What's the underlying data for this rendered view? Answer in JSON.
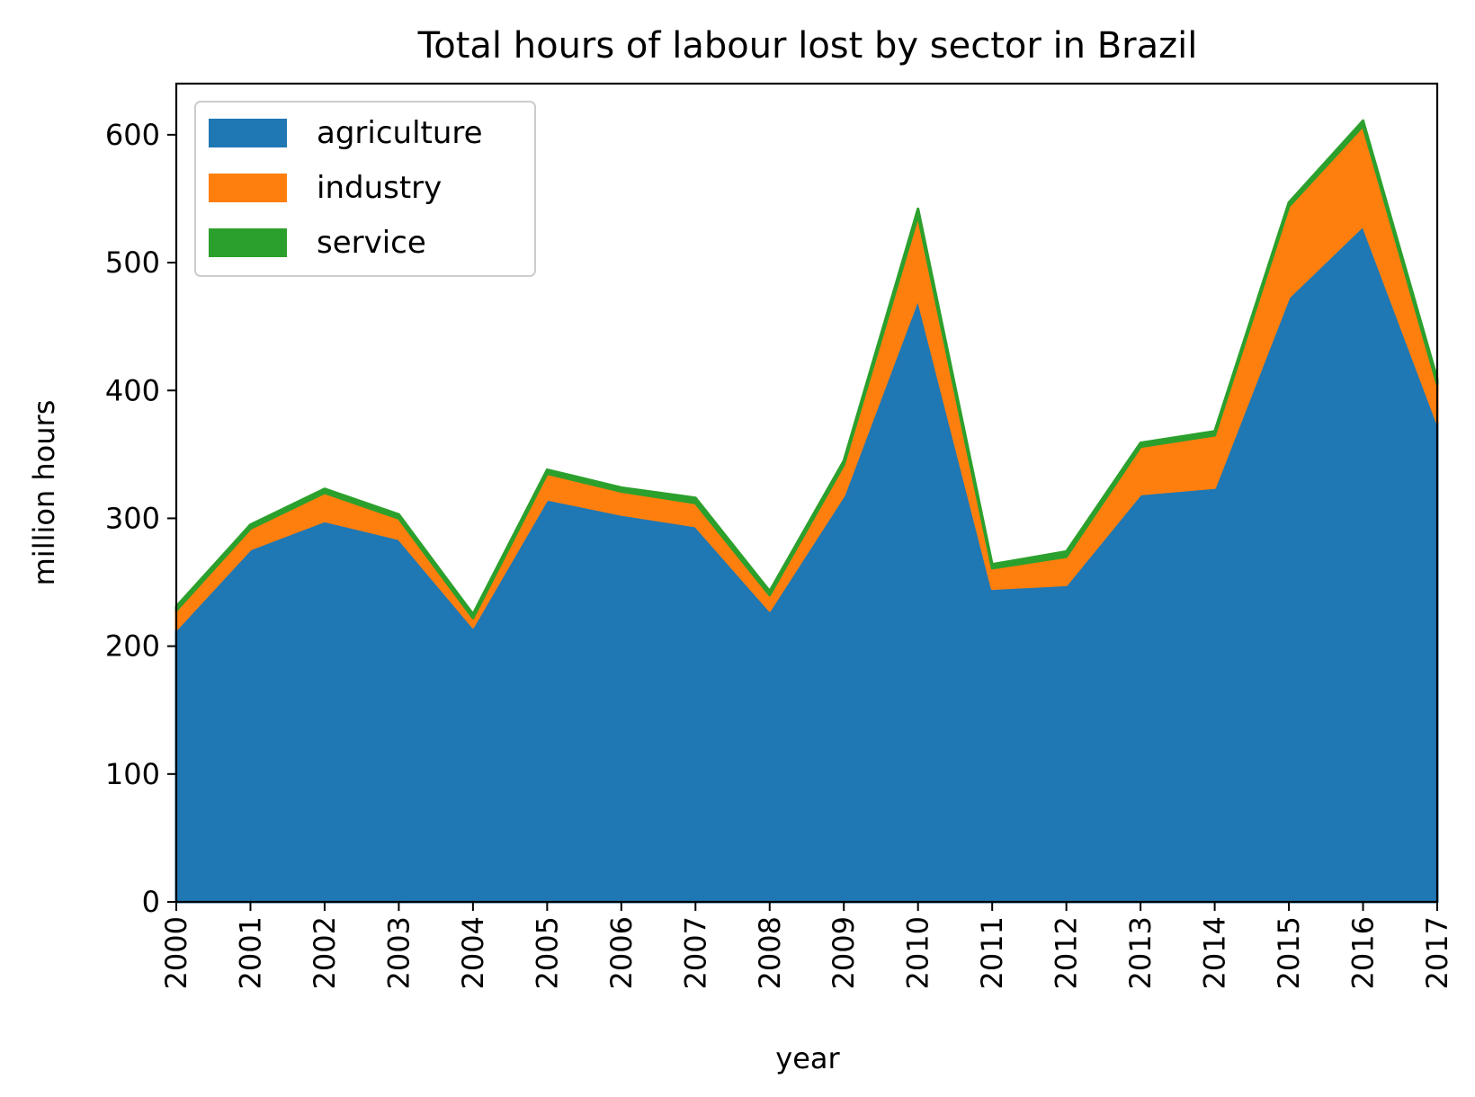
{
  "chart_data": {
    "type": "area",
    "stacked": true,
    "title": "Total hours of labour lost by sector in Brazil",
    "xlabel": "year",
    "ylabel": "million hours",
    "x": [
      2000,
      2001,
      2002,
      2003,
      2004,
      2005,
      2006,
      2007,
      2008,
      2009,
      2010,
      2011,
      2012,
      2013,
      2014,
      2015,
      2016,
      2017
    ],
    "x_tick_labels": [
      "2000",
      "2001",
      "2002",
      "2003",
      "2004",
      "2005",
      "2006",
      "2007",
      "2008",
      "2009",
      "2010",
      "2011",
      "2012",
      "2013",
      "2014",
      "2015",
      "2016",
      "2017"
    ],
    "xlim": [
      2000,
      2017
    ],
    "ylim": [
      0,
      640
    ],
    "y_ticks": [
      0,
      100,
      200,
      300,
      400,
      500,
      600
    ],
    "y_tick_labels": [
      "0",
      "100",
      "200",
      "300",
      "400",
      "500",
      "600"
    ],
    "grid": false,
    "legend_position": "top-left",
    "series": [
      {
        "name": "agriculture",
        "color": "#1f77b4",
        "values": [
          213,
          276,
          298,
          284,
          215,
          315,
          303,
          294,
          228,
          318,
          472,
          245,
          248,
          319,
          324,
          473,
          529,
          375
        ]
      },
      {
        "name": "industry",
        "color": "#ff7f0e",
        "values": [
          15,
          16,
          22,
          16,
          7,
          20,
          18,
          18,
          12,
          24,
          65,
          16,
          22,
          37,
          41,
          71,
          78,
          30
        ]
      },
      {
        "name": "service",
        "color": "#2ca02c",
        "values": [
          3,
          3,
          3,
          3,
          3,
          3,
          3,
          4,
          3,
          3,
          5,
          3,
          4,
          3,
          3,
          3,
          4,
          4
        ]
      }
    ]
  }
}
